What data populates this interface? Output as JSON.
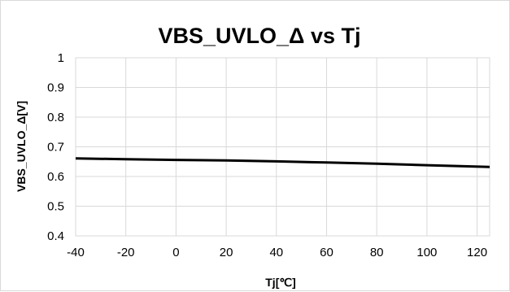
{
  "chart_data": {
    "type": "line",
    "title": "VBS_UVLO_Δ vs Tj",
    "xlabel": "Tj[℃]",
    "ylabel": "VBS_UVLO_Δ[V]",
    "xlim": [
      -40,
      125
    ],
    "ylim": [
      0.4,
      1.0
    ],
    "xticks": [
      -40,
      -20,
      0,
      20,
      40,
      60,
      80,
      100,
      120
    ],
    "yticks": [
      0.4,
      0.5,
      0.6,
      0.7,
      0.8,
      0.9,
      1.0
    ],
    "xtick_labels": [
      "-40",
      "-20",
      "0",
      "20",
      "40",
      "60",
      "80",
      "100",
      "120"
    ],
    "ytick_labels": [
      "0.4",
      "0.5",
      "0.6",
      "0.7",
      "0.8",
      "0.9",
      "1"
    ],
    "grid": true,
    "legend": "none",
    "series": [
      {
        "x": [
          -40,
          -20,
          0,
          20,
          40,
          60,
          80,
          100,
          125
        ],
        "y": [
          0.661,
          0.658,
          0.656,
          0.654,
          0.651,
          0.647,
          0.643,
          0.638,
          0.632
        ],
        "color": "#000000"
      }
    ]
  }
}
